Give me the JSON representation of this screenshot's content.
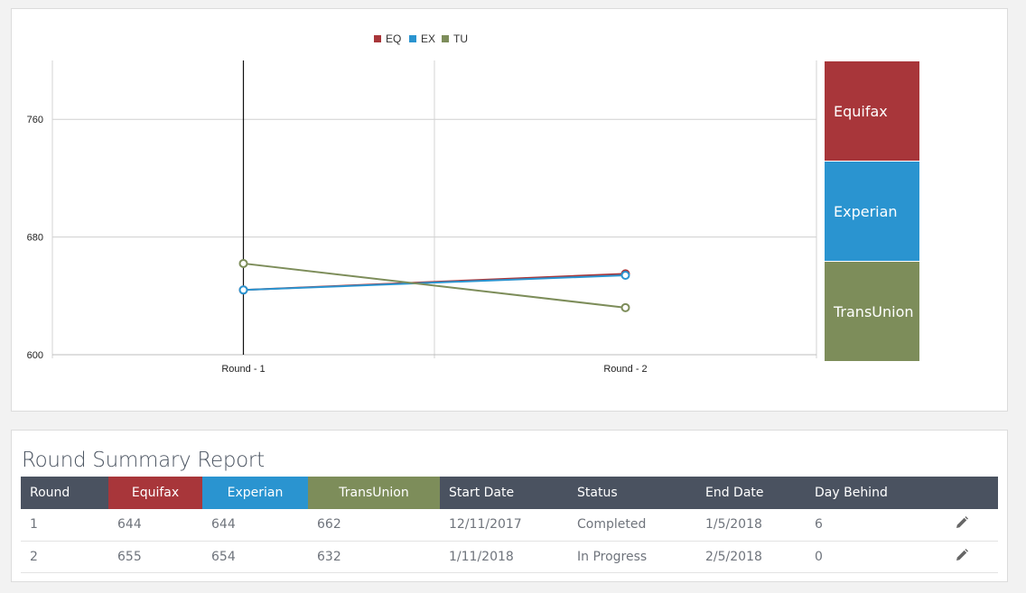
{
  "colors": {
    "eq": "#a8363a",
    "ex": "#2a94d0",
    "tu": "#7d8d5a",
    "header": "#4a5260"
  },
  "chart_data": {
    "type": "line",
    "categories": [
      "Round - 1",
      "Round - 2"
    ],
    "series": [
      {
        "name": "EQ",
        "values": [
          644,
          655
        ],
        "color": "#a8363a"
      },
      {
        "name": "EX",
        "values": [
          644,
          654
        ],
        "color": "#2a94d0"
      },
      {
        "name": "TU",
        "values": [
          662,
          632
        ],
        "color": "#7d8d5a"
      }
    ],
    "ylim": [
      600,
      800
    ],
    "yticks": [
      600,
      680,
      760
    ],
    "grid": true,
    "legend": "top-center",
    "highlighted_category": "Round - 1"
  },
  "bureaus": [
    {
      "label": "Equifax",
      "color": "#a8363a"
    },
    {
      "label": "Experian",
      "color": "#2a94d0"
    },
    {
      "label": "TransUnion",
      "color": "#7d8d5a"
    }
  ],
  "report": {
    "title": "Round Summary Report",
    "columns": {
      "round": "Round",
      "equifax": "Equifax",
      "experian": "Experian",
      "transunion": "TransUnion",
      "start": "Start Date",
      "status": "Status",
      "end": "End Date",
      "behind": "Day Behind"
    },
    "rows": [
      {
        "round": "1",
        "equifax": "644",
        "experian": "644",
        "transunion": "662",
        "start": "12/11/2017",
        "status": "Completed",
        "end": "1/5/2018",
        "behind": "6",
        "action_icon": "pencil-icon"
      },
      {
        "round": "2",
        "equifax": "655",
        "experian": "654",
        "transunion": "632",
        "start": "1/11/2018",
        "status": "In Progress",
        "end": "2/5/2018",
        "behind": "0",
        "action_icon": "pencil-icon"
      }
    ]
  }
}
